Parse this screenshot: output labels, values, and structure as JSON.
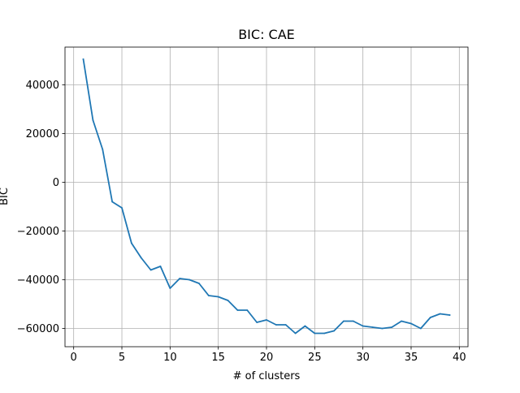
{
  "chart_data": {
    "type": "line",
    "title": "BIC: CAE",
    "xlabel": "# of clusters",
    "ylabel": "BIC",
    "xlim": [
      -0.9,
      40.9
    ],
    "ylim": [
      -67500,
      55500
    ],
    "xticks": [
      0,
      5,
      10,
      15,
      20,
      25,
      30,
      35,
      40
    ],
    "yticks": [
      -60000,
      -40000,
      -20000,
      0,
      20000,
      40000
    ],
    "grid": true,
    "legend": "none",
    "series": [
      {
        "color": "#1f77b4",
        "x": [
          1,
          2,
          3,
          4,
          5,
          6,
          7,
          8,
          9,
          10,
          11,
          12,
          13,
          14,
          15,
          16,
          17,
          18,
          19,
          20,
          21,
          22,
          23,
          24,
          25,
          26,
          27,
          28,
          29,
          30,
          31,
          32,
          33,
          34,
          35,
          36,
          37,
          38,
          39
        ],
        "y": [
          50500,
          25500,
          13500,
          -8000,
          -10500,
          -25000,
          -31000,
          -36000,
          -34500,
          -43500,
          -39500,
          -40000,
          -41500,
          -46500,
          -47000,
          -48500,
          -52500,
          -52500,
          -57500,
          -56500,
          -58500,
          -58500,
          -62000,
          -59000,
          -62000,
          -62000,
          -61000,
          -57000,
          -57000,
          -59000,
          -59500,
          -60000,
          -59500,
          -57000,
          -58000,
          -60000,
          -55500,
          -54000,
          -54500
        ]
      }
    ]
  }
}
